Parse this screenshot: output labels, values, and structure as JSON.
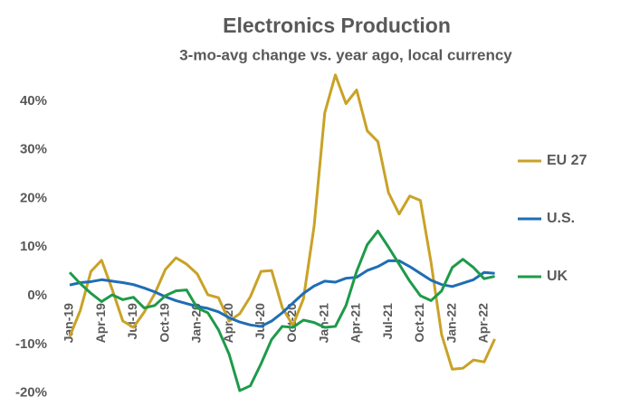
{
  "chart_data": {
    "type": "line",
    "title": "Electronics Production",
    "subtitle": "3-mo-avg change vs. year ago, local currency",
    "categories": [
      "Jan-19",
      null,
      null,
      "Apr-19",
      null,
      null,
      "Jul-19",
      null,
      null,
      "Oct-19",
      null,
      null,
      "Jan-20",
      null,
      null,
      "Apr-20",
      null,
      null,
      "Jul-20",
      null,
      null,
      "Oct-20",
      null,
      null,
      "Jan-21",
      null,
      null,
      "Apr-21",
      null,
      null,
      "Jul-21",
      null,
      null,
      "Oct-21",
      null,
      null,
      "Jan-22",
      null,
      null,
      "Apr-22",
      null
    ],
    "series": [
      {
        "name": "EU 27",
        "color": "#c9a227",
        "values": [
          -8.4,
          -3,
          5,
          7.3,
          1.3,
          -5.2,
          -6.5,
          -3.4,
          0.4,
          5.4,
          7.8,
          6.5,
          4.5,
          0.2,
          -0.4,
          -5.2,
          -3.7,
          -0.2,
          5,
          5.2,
          -2.4,
          -6.1,
          -0.6,
          14.3,
          37.6,
          45.4,
          39.5,
          42.3,
          33.9,
          31.7,
          21.2,
          16.8,
          20.5,
          19.6,
          6.9,
          -8,
          -15.1,
          -14.9,
          -13.2,
          -13.6,
          -8.9
        ]
      },
      {
        "name": "U.S.",
        "color": "#1f6db5",
        "values": [
          2.2,
          2.7,
          2.9,
          3.3,
          3.0,
          2.7,
          2.3,
          1.6,
          0.8,
          -0.2,
          -1.0,
          -1.6,
          -2.2,
          -2.6,
          -3.3,
          -4.5,
          -5.4,
          -6.0,
          -6.3,
          -5.2,
          -3.5,
          -1.5,
          0.5,
          2.0,
          3.0,
          2.8,
          3.6,
          3.8,
          5.2,
          6.0,
          7.2,
          7.2,
          6.0,
          4.6,
          3.2,
          2.3,
          1.9,
          2.6,
          3.3,
          4.8,
          4.6
        ]
      },
      {
        "name": "UK",
        "color": "#1e9a4a",
        "values": [
          4.8,
          2.5,
          0.5,
          -1.2,
          0.2,
          -0.8,
          -0.3,
          -2.5,
          -2,
          0,
          1,
          1.2,
          -2.5,
          -3.5,
          -7,
          -12,
          -19.5,
          -18.5,
          -14,
          -9,
          -6.3,
          -6.5,
          -5,
          -5.5,
          -6.5,
          -6.3,
          -2,
          5,
          10.5,
          13.3,
          10,
          6.5,
          3,
          0,
          -1,
          1,
          5.8,
          7.5,
          5.8,
          3.5,
          4
        ]
      }
    ],
    "ylim": [
      -21,
      45
    ],
    "yticks": [
      {
        "value": -20,
        "label": "-20%"
      },
      {
        "value": -10,
        "label": "-10%"
      },
      {
        "value": 0,
        "label": "0%"
      },
      {
        "value": 10,
        "label": "10%"
      },
      {
        "value": 20,
        "label": "20%"
      },
      {
        "value": 30,
        "label": "30%"
      },
      {
        "value": 40,
        "label": "40%"
      }
    ],
    "legend": "right"
  }
}
